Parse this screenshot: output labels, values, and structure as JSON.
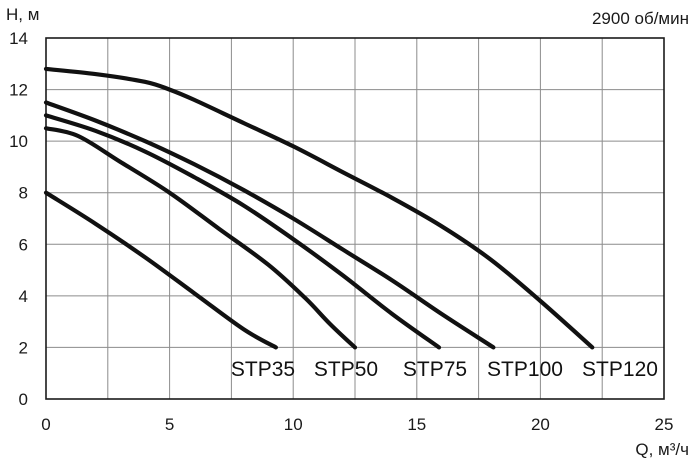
{
  "chart_data": {
    "type": "line",
    "title": "",
    "annotation": "2900 об/мин",
    "xlabel": "Q, м³/ч",
    "ylabel": "H, м",
    "xlim": [
      0,
      25
    ],
    "ylim": [
      0,
      14
    ],
    "x_ticks": [
      0,
      5,
      10,
      15,
      20,
      25
    ],
    "y_ticks": [
      0,
      2,
      4,
      6,
      8,
      10,
      12,
      14
    ],
    "grid": true,
    "series": [
      {
        "name": "STP35",
        "x": [
          0,
          2,
          4,
          6,
          8,
          9.3
        ],
        "y": [
          8.0,
          6.8,
          5.5,
          4.1,
          2.7,
          2.0
        ]
      },
      {
        "name": "STP50",
        "x": [
          0,
          1.3,
          3,
          5,
          7,
          9,
          10.5,
          11.5,
          12.5
        ],
        "y": [
          10.5,
          10.2,
          9.2,
          8.0,
          6.6,
          5.2,
          3.9,
          2.9,
          2.0
        ]
      },
      {
        "name": "STP75",
        "x": [
          0,
          2,
          4,
          6,
          8,
          10,
          12,
          14,
          15.9
        ],
        "y": [
          11.0,
          10.4,
          9.6,
          8.6,
          7.5,
          6.2,
          4.8,
          3.3,
          2.0
        ]
      },
      {
        "name": "STP100",
        "x": [
          0,
          2,
          4,
          6,
          8,
          10,
          12,
          14,
          16,
          18.1
        ],
        "y": [
          11.5,
          10.8,
          10.0,
          9.1,
          8.1,
          7.0,
          5.8,
          4.6,
          3.3,
          2.0
        ]
      },
      {
        "name": "STP120",
        "x": [
          0,
          2,
          4,
          5,
          6,
          8,
          10,
          12,
          14,
          16,
          18,
          20,
          22.1
        ],
        "y": [
          12.8,
          12.6,
          12.3,
          12.0,
          11.6,
          10.7,
          9.8,
          8.8,
          7.8,
          6.7,
          5.4,
          3.8,
          2.0
        ]
      }
    ]
  }
}
